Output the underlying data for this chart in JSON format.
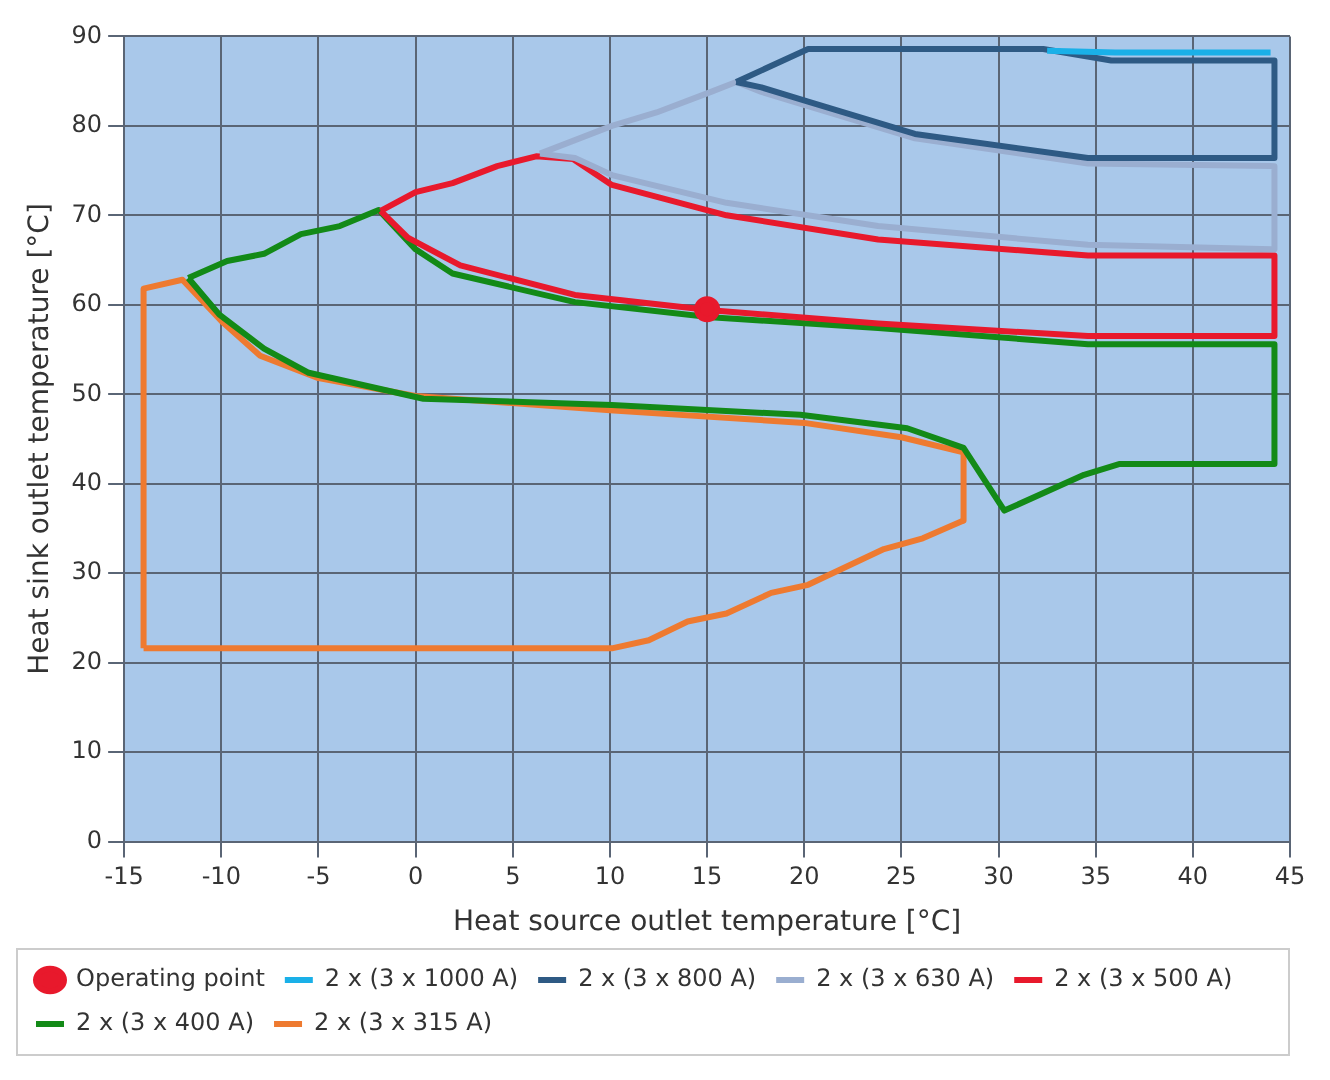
{
  "chart_data": {
    "type": "line",
    "xlabel": "Heat source outlet temperature [°C]",
    "ylabel": "Heat sink outlet temperature [°C]",
    "xlim": [
      -15,
      45
    ],
    "xticks": [
      -15,
      -10,
      -5,
      0,
      5,
      10,
      15,
      20,
      25,
      30,
      35,
      40,
      45
    ],
    "ylim": [
      0,
      90
    ],
    "yticks": [
      0,
      10,
      20,
      30,
      40,
      50,
      60,
      70,
      80,
      90
    ],
    "grid": true,
    "legend": "bottom",
    "series": [
      {
        "name": "Operating point",
        "type": "scatter",
        "marker": "circle",
        "color": "#e8192c",
        "x": [
          15
        ],
        "values": [
          59.5
        ]
      },
      {
        "name": "2 x (3 x 1000 A)",
        "color": "#1ab0e8",
        "x": [
          32.5,
          36,
          44
        ],
        "values": [
          88.4,
          88.2,
          88.2
        ]
      },
      {
        "name": "2 x (3 x 800 A)",
        "color": "#2e5a84",
        "x": [
          16.5,
          20.2,
          32.3,
          35.8,
          44.2,
          44.2
        ],
        "values": [
          84.9,
          88.6,
          88.6,
          87.3,
          87.3,
          76.4
        ]
      },
      {
        "color": "#2e5a84",
        "x": [
          16.5,
          17.8,
          20.2,
          25.7,
          34.6,
          44.2
        ],
        "values": [
          84.9,
          84.3,
          82.7,
          79.1,
          76.4,
          76.4
        ]
      },
      {
        "name": "2 x (3 x 630 A)",
        "color": "#9aaed0",
        "x": [
          6.4,
          10.1,
          12.4,
          15.2,
          16.5,
          17.8,
          20.2,
          25.7,
          34.6,
          44.2,
          44.2
        ],
        "values": [
          76.9,
          80,
          81.5,
          83.8,
          84.9,
          83.8,
          82.2,
          78.6,
          75.8,
          75.5,
          66.2
        ]
      },
      {
        "color": "#9aaed0",
        "x": [
          6.4,
          8.2,
          10.1,
          16,
          23.8,
          34.6,
          44.2
        ],
        "values": [
          76.9,
          76.4,
          74.5,
          71.4,
          68.8,
          66.7,
          66.2
        ]
      },
      {
        "name": "2 x (3 x 500 A)",
        "color": "#e8192c",
        "x": [
          -1.8,
          0,
          1.9,
          4.2,
          6.2,
          8.1,
          10.1,
          16,
          23.8,
          34.6,
          44.2,
          44.2
        ],
        "values": [
          70.5,
          72.6,
          73.6,
          75.5,
          76.6,
          76.3,
          73.4,
          70,
          67.3,
          65.5,
          65.5,
          56.5
        ]
      },
      {
        "color": "#e8192c",
        "x": [
          -1.8,
          -0.4,
          2.3,
          8.2,
          15.2,
          23.8,
          34.6,
          44.2
        ],
        "values": [
          70.5,
          67.5,
          64.4,
          61.1,
          59.4,
          57.9,
          56.5,
          56.5
        ]
      },
      {
        "name": "2 x (3 x 400 A)",
        "color": "#138a17",
        "x": [
          -11.7,
          -9.7,
          -7.8,
          -5.9,
          -3.9,
          -1.9,
          0,
          1.9,
          8.2,
          15.2,
          23.8,
          34.6,
          44.2,
          44.2
        ],
        "values": [
          63,
          64.9,
          65.7,
          67.9,
          68.8,
          70.6,
          66.2,
          63.5,
          60.3,
          58.6,
          57.4,
          55.6,
          55.6,
          42.2
        ]
      },
      {
        "color": "#138a17",
        "x": [
          -11.7,
          -10.1,
          -7.8,
          -5.5,
          0.4,
          10.1,
          19.8,
          25.3,
          28.2,
          30.3,
          34.4,
          36.2,
          44.2
        ],
        "values": [
          63,
          58.9,
          55.1,
          52.4,
          49.5,
          48.8,
          47.7,
          46.2,
          44,
          37,
          41,
          42.2,
          42.2
        ]
      },
      {
        "name": "2 x (3 x 315 A)",
        "color": "#ee7a30",
        "x": [
          -14,
          -14,
          -12,
          -10,
          -8,
          -5,
          0,
          10,
          20,
          25,
          28.2,
          28.2
        ],
        "values": [
          21.6,
          61.8,
          62.8,
          58.2,
          54.3,
          51.8,
          49.8,
          48.2,
          46.8,
          45.2,
          43.5,
          35.9
        ]
      },
      {
        "color": "#ee7a30",
        "x": [
          -14,
          10.1,
          12,
          14,
          16,
          18.3,
          20.2,
          24.1,
          26.1,
          28.2
        ],
        "values": [
          21.6,
          21.6,
          22.5,
          24.6,
          25.5,
          27.8,
          28.7,
          32.7,
          33.9,
          35.9
        ]
      }
    ]
  }
}
